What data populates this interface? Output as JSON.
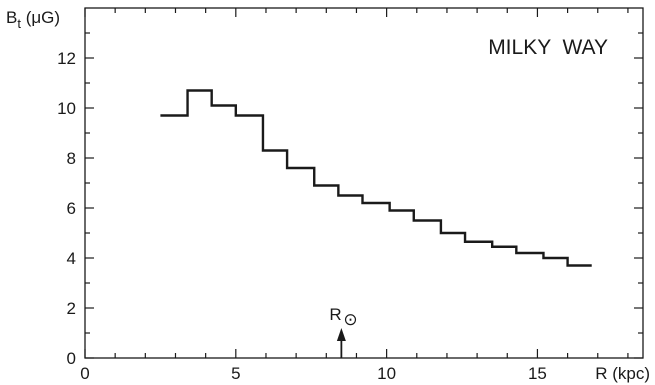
{
  "chart_data": {
    "type": "line",
    "step": true,
    "annotation": "MILKY  WAY",
    "ylabel": {
      "base": "B",
      "subscript": "t",
      "unit_open": " (",
      "unit_mu": "μ",
      "unit_rest": "G)"
    },
    "xlabel": "R (kpc)",
    "xlim": [
      0,
      18.5
    ],
    "ylim": [
      0,
      14
    ],
    "x_ticks": [
      0,
      5,
      10,
      15
    ],
    "x_tick_labels": [
      "0",
      "5",
      "10",
      "15"
    ],
    "y_ticks": [
      0,
      2,
      4,
      6,
      8,
      10,
      12
    ],
    "y_tick_labels": [
      "0",
      "2",
      "4",
      "6",
      "8",
      "10",
      "12"
    ],
    "x_minor_step": 1,
    "y_minor_step": 1,
    "grid": false,
    "series": [
      {
        "edges": [
          2.5,
          3.4,
          4.2,
          5.0,
          5.9,
          6.7,
          7.6,
          8.4,
          9.2,
          10.1,
          10.9,
          11.8,
          12.6,
          13.5,
          14.3,
          15.2,
          16.0,
          16.8
        ],
        "values": [
          9.7,
          10.7,
          10.1,
          9.7,
          8.3,
          7.6,
          6.9,
          6.5,
          6.2,
          5.9,
          5.5,
          5.0,
          4.65,
          4.45,
          4.2,
          4.0,
          3.7
        ]
      }
    ],
    "marker": {
      "x": 8.5,
      "label": "R",
      "symbol": "⊙"
    },
    "colors": {
      "line": "#1a1a1a",
      "axis": "#1a1a1a",
      "background": "#ffffff"
    }
  }
}
